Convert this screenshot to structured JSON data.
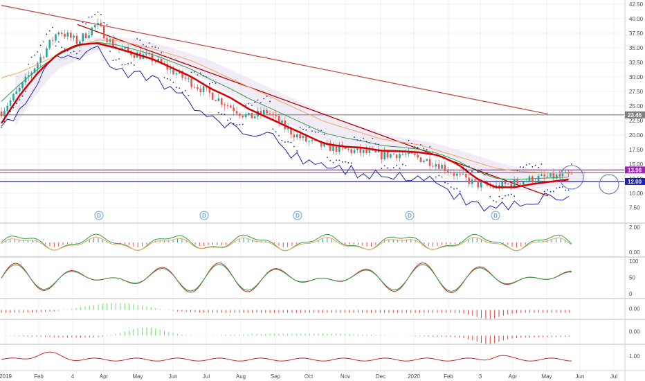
{
  "chart_data": {
    "type": "candlestick",
    "x_labels": [
      "2019",
      "Feb",
      "4",
      "Apr",
      "May",
      "Jun",
      "Jul",
      "Aug",
      "Sep",
      "Oct",
      "Nov",
      "Dec",
      "2020",
      "Feb",
      "3",
      "Apr",
      "May",
      "Jun",
      "Jul"
    ],
    "main": {
      "y_ticks": [
        "42.50",
        "40.00",
        "37.50",
        "35.00",
        "32.50",
        "30.00",
        "27.50",
        "25.00",
        "22.50",
        "20.00",
        "17.50",
        "15.00",
        "12.50",
        "10.00",
        "7.50"
      ],
      "ylim": [
        5.8,
        42.5
      ],
      "price_series": [
        24,
        28,
        33,
        38,
        36,
        39,
        35,
        34,
        33,
        31,
        29,
        27,
        25,
        23,
        24,
        21,
        19,
        18,
        17.5,
        17,
        16.5,
        16.8,
        16,
        15,
        13,
        11.5,
        11,
        11.8,
        12.5,
        12.8,
        13
      ],
      "ema_red": [
        22,
        27,
        31,
        34,
        35.5,
        35.8,
        35,
        34,
        33,
        31.5,
        30,
        28,
        26.5,
        24.5,
        23,
        21.5,
        20,
        18.5,
        18,
        17.8,
        17.3,
        17.2,
        17,
        16.5,
        15,
        12.5,
        11,
        11,
        11.6,
        12,
        12.4
      ],
      "ema_orange": [
        29,
        30,
        31.5,
        33,
        34.5,
        35.5,
        35.5,
        34.8,
        34,
        33,
        32,
        30.5,
        29,
        27.5,
        26,
        24.5,
        23,
        21.5,
        20.5,
        19.5,
        18.5,
        18,
        17.5,
        16.5,
        15.5,
        14.5,
        13.5,
        13,
        12.8,
        12.7,
        12.6
      ],
      "horizontal_levels": [
        {
          "value": 23.46,
          "label": "23.46",
          "color": "#7f7f7f"
        },
        {
          "value": 13.98,
          "label": "13.98",
          "color": "#9c27b0"
        },
        {
          "value": 12.0,
          "label": "12.00",
          "color": "#1e22aa"
        }
      ],
      "trendlines": [
        {
          "from": [
            0,
            42.3
          ],
          "to": [
            27.6,
            23.6
          ],
          "color": "#c0504d"
        },
        {
          "from": [
            4,
            39.0
          ],
          "to": [
            27.6,
            9.5
          ],
          "color": "#b00000"
        }
      ],
      "dividend_markers": [
        "D",
        "D",
        "D",
        "D",
        "D"
      ]
    },
    "panels": [
      {
        "name": "macd",
        "y_ticks": [
          "2.00",
          "0.00"
        ]
      },
      {
        "name": "stoch",
        "y_ticks": [
          "100",
          "50",
          "0"
        ]
      },
      {
        "name": "hist1",
        "y_ticks": [
          "0.00"
        ]
      },
      {
        "name": "hist2",
        "y_ticks": [
          "0.00"
        ]
      },
      {
        "name": "atr",
        "y_ticks": [
          "1.00"
        ]
      }
    ]
  },
  "colors": {
    "up": "#26a69a",
    "down": "#ef5350",
    "bg": "#ffffff",
    "grid": "#f0f0f0",
    "purple_tag": "#9c27b0",
    "blue_tag": "#1e22aa",
    "gray_tag": "#7f7f7f"
  }
}
